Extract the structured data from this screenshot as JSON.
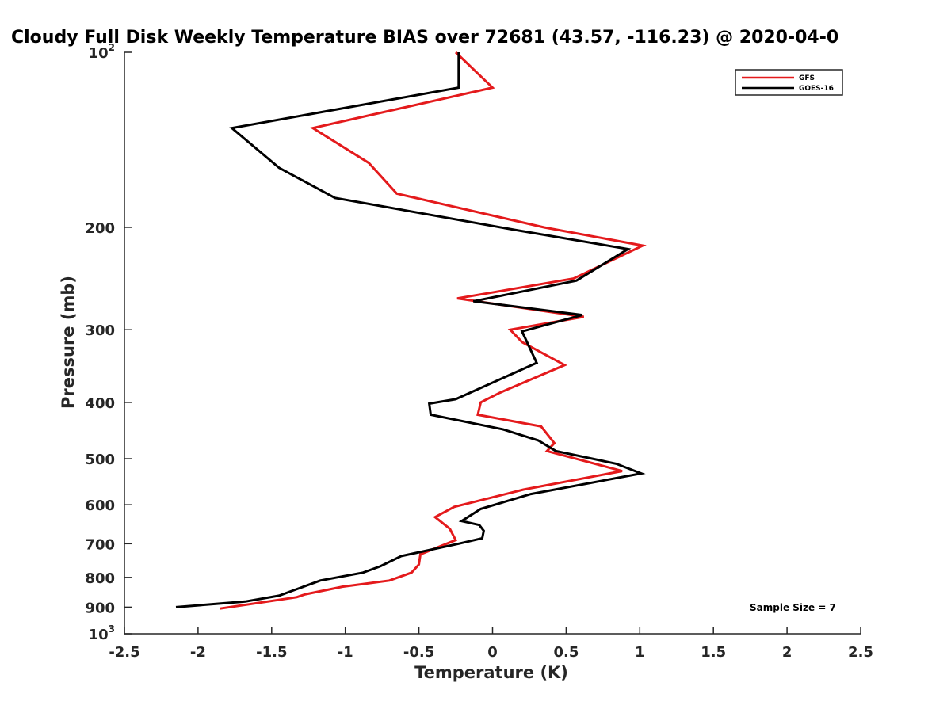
{
  "chart_data": {
    "type": "line",
    "title": "Cloudy Full Disk Weekly Temperature BIAS over 72681 (43.57, -116.23) @ 2020-04-0",
    "xlabel": "Temperature (K)",
    "ylabel": "Pressure (mb)",
    "xlim": [
      -2.5,
      2.5
    ],
    "ylim": [
      100,
      1000
    ],
    "y_scale": "log",
    "y_reversed": true,
    "grid": false,
    "legend_position": "top-right",
    "x_ticks": [
      -2.5,
      -2,
      -1.5,
      -1,
      -0.5,
      0,
      0.5,
      1,
      1.5,
      2,
      2.5
    ],
    "x_tick_labels": [
      "-2.5",
      "-2",
      "-1.5",
      "-1",
      "-0.5",
      "0",
      "0.5",
      "1",
      "1.5",
      "2",
      "2.5"
    ],
    "y_ticks": [
      {
        "value": 100,
        "base": "10",
        "exp": "2"
      },
      {
        "value": 200,
        "label": "200"
      },
      {
        "value": 300,
        "label": "300"
      },
      {
        "value": 400,
        "label": "400"
      },
      {
        "value": 500,
        "label": "500"
      },
      {
        "value": 600,
        "label": "600"
      },
      {
        "value": 700,
        "label": "700"
      },
      {
        "value": 800,
        "label": "800"
      },
      {
        "value": 900,
        "label": "900"
      },
      {
        "value": 1000,
        "base": "10",
        "exp": "3"
      }
    ],
    "series": [
      {
        "name": "GFS",
        "color": "#e41a1c",
        "points": [
          {
            "x": -0.25,
            "y": 100
          },
          {
            "x": 0.0,
            "y": 115
          },
          {
            "x": -1.22,
            "y": 135
          },
          {
            "x": -0.84,
            "y": 155
          },
          {
            "x": -0.65,
            "y": 175
          },
          {
            "x": 0.35,
            "y": 200
          },
          {
            "x": 1.02,
            "y": 215
          },
          {
            "x": 0.55,
            "y": 245
          },
          {
            "x": -0.24,
            "y": 265
          },
          {
            "x": 0.62,
            "y": 285
          },
          {
            "x": 0.12,
            "y": 300
          },
          {
            "x": 0.2,
            "y": 315
          },
          {
            "x": 0.49,
            "y": 345
          },
          {
            "x": 0.05,
            "y": 385
          },
          {
            "x": -0.08,
            "y": 400
          },
          {
            "x": -0.1,
            "y": 420
          },
          {
            "x": 0.33,
            "y": 440
          },
          {
            "x": 0.42,
            "y": 470
          },
          {
            "x": 0.37,
            "y": 485
          },
          {
            "x": 0.88,
            "y": 525
          },
          {
            "x": 0.21,
            "y": 565
          },
          {
            "x": -0.26,
            "y": 605
          },
          {
            "x": -0.39,
            "y": 630
          },
          {
            "x": -0.29,
            "y": 660
          },
          {
            "x": -0.25,
            "y": 690
          },
          {
            "x": -0.49,
            "y": 730
          },
          {
            "x": -0.5,
            "y": 760
          },
          {
            "x": -0.55,
            "y": 785
          },
          {
            "x": -0.7,
            "y": 810
          },
          {
            "x": -1.02,
            "y": 830
          },
          {
            "x": -1.27,
            "y": 855
          },
          {
            "x": -1.33,
            "y": 865
          },
          {
            "x": -1.85,
            "y": 905
          }
        ]
      },
      {
        "name": "GOES-16",
        "color": "#000000",
        "points": [
          {
            "x": -0.23,
            "y": 100
          },
          {
            "x": -0.23,
            "y": 115
          },
          {
            "x": -1.77,
            "y": 135
          },
          {
            "x": -1.45,
            "y": 158
          },
          {
            "x": -1.07,
            "y": 178
          },
          {
            "x": 0.15,
            "y": 202
          },
          {
            "x": 0.92,
            "y": 218
          },
          {
            "x": 0.57,
            "y": 247
          },
          {
            "x": -0.13,
            "y": 268
          },
          {
            "x": 0.61,
            "y": 283
          },
          {
            "x": 0.2,
            "y": 302
          },
          {
            "x": 0.3,
            "y": 342
          },
          {
            "x": -0.25,
            "y": 395
          },
          {
            "x": -0.43,
            "y": 402
          },
          {
            "x": -0.42,
            "y": 420
          },
          {
            "x": 0.07,
            "y": 445
          },
          {
            "x": 0.31,
            "y": 465
          },
          {
            "x": 0.43,
            "y": 485
          },
          {
            "x": 0.84,
            "y": 510
          },
          {
            "x": 1.01,
            "y": 530
          },
          {
            "x": 0.26,
            "y": 575
          },
          {
            "x": -0.08,
            "y": 610
          },
          {
            "x": -0.21,
            "y": 640
          },
          {
            "x": -0.09,
            "y": 650
          },
          {
            "x": -0.06,
            "y": 665
          },
          {
            "x": -0.07,
            "y": 685
          },
          {
            "x": -0.23,
            "y": 700
          },
          {
            "x": -0.62,
            "y": 735
          },
          {
            "x": -0.76,
            "y": 765
          },
          {
            "x": -0.88,
            "y": 785
          },
          {
            "x": -1.17,
            "y": 810
          },
          {
            "x": -1.34,
            "y": 840
          },
          {
            "x": -1.45,
            "y": 860
          },
          {
            "x": -1.68,
            "y": 880
          },
          {
            "x": -2.15,
            "y": 900
          }
        ]
      }
    ],
    "annotation": "Sample Size = 7"
  }
}
